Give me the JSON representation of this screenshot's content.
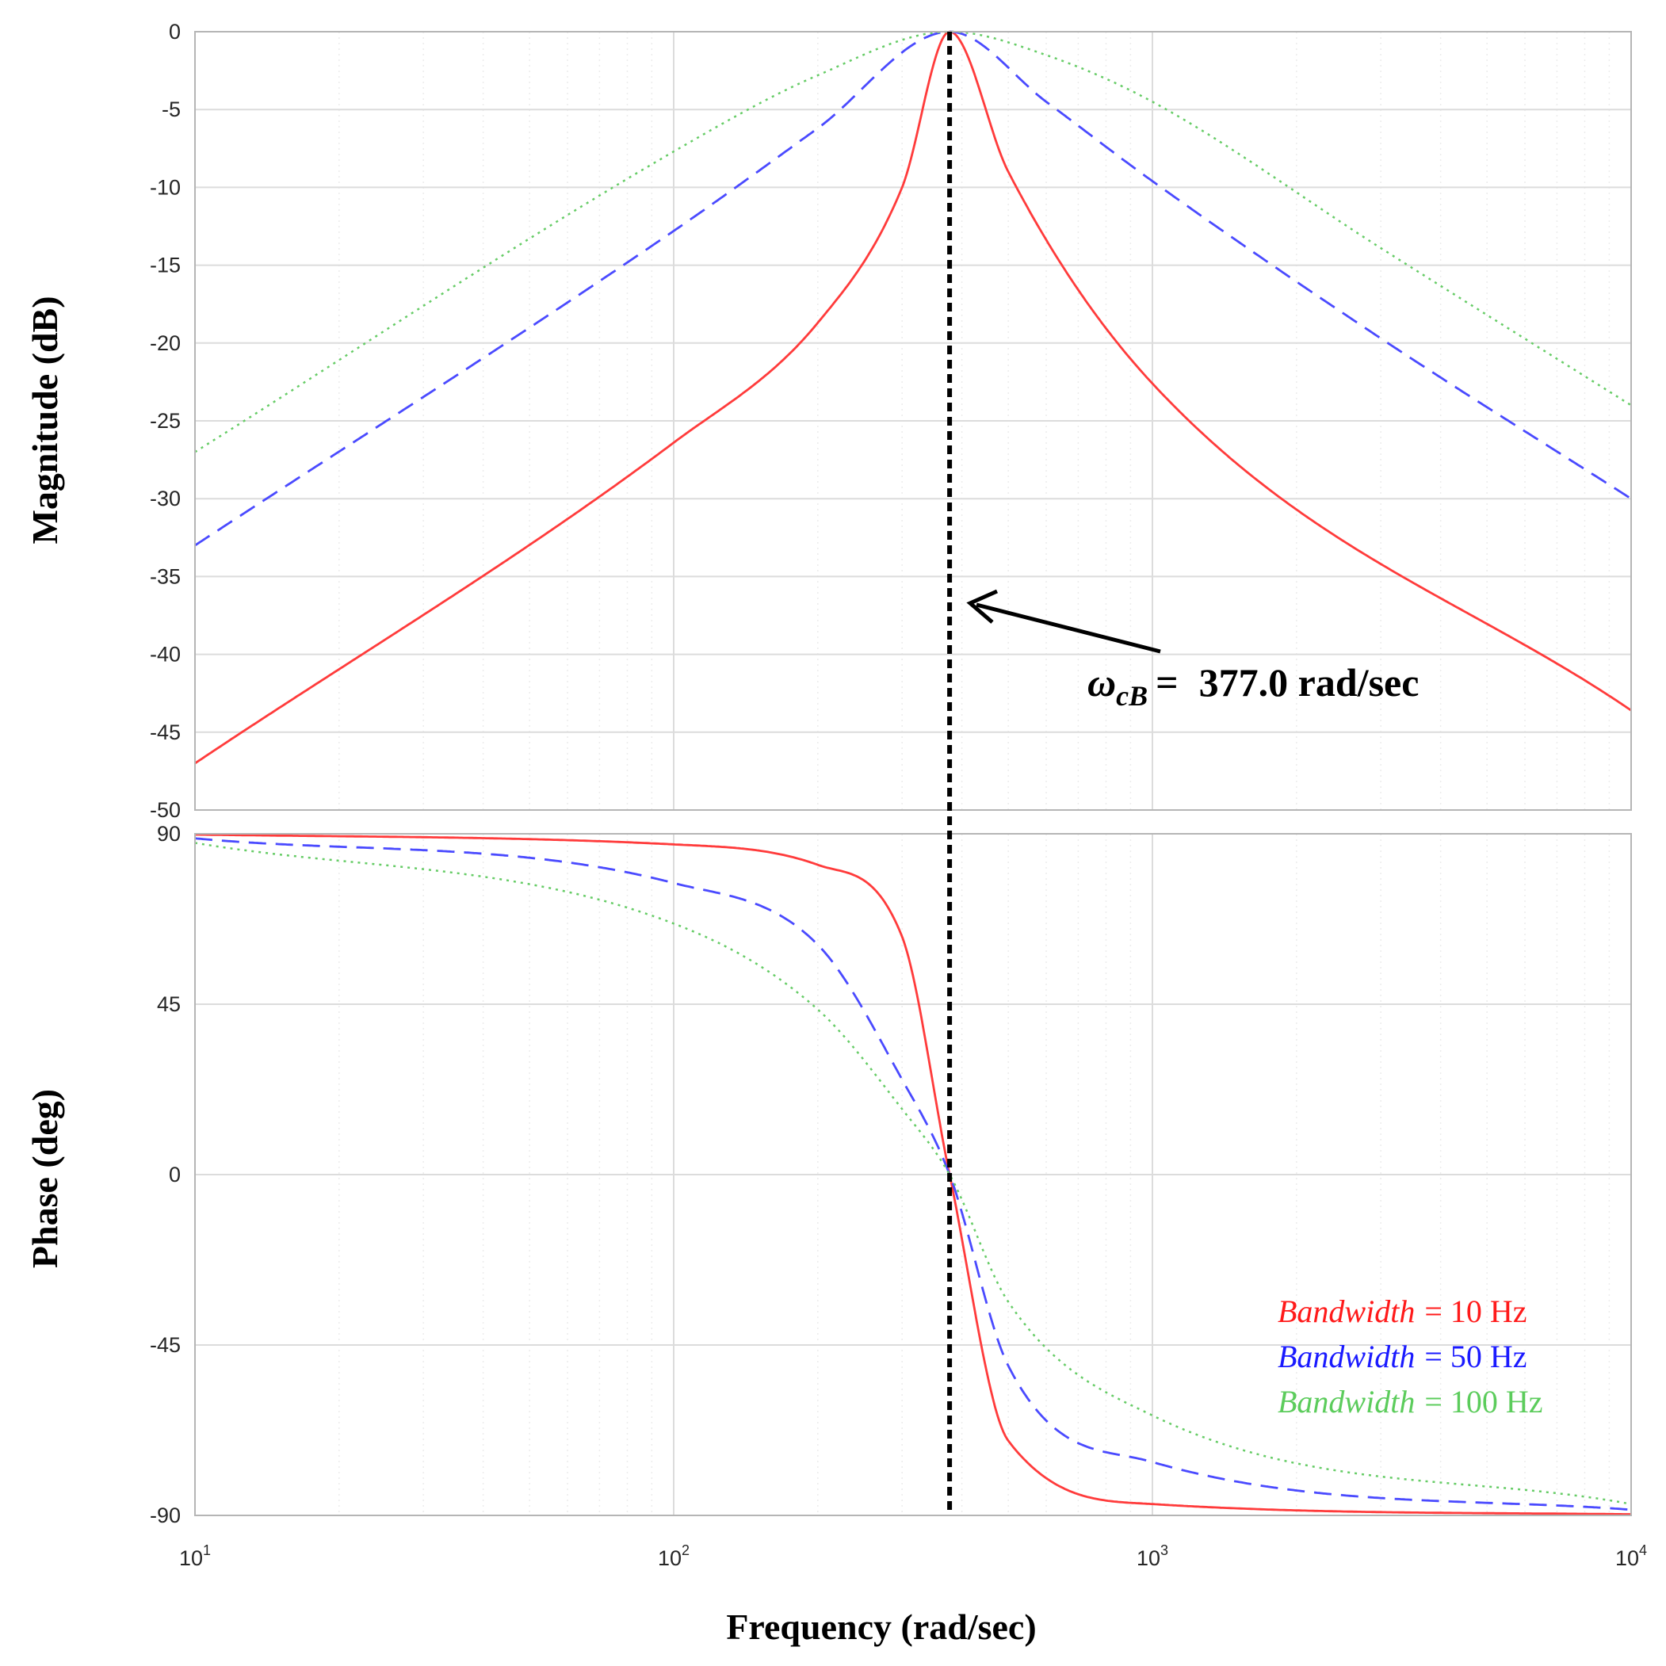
{
  "chart_data": {
    "type": "line",
    "title": "",
    "subtitle": "",
    "xlabel": "Frequency (rad/sec)",
    "xscale": "log",
    "xlim": [
      10,
      10000
    ],
    "x_ticks": [
      {
        "base": "10",
        "exp": "1"
      },
      {
        "base": "10",
        "exp": "2"
      },
      {
        "base": "10",
        "exp": "3"
      },
      {
        "base": "10",
        "exp": "4"
      }
    ],
    "grid": true,
    "center_frequency_rad_s": 377.0,
    "panels": [
      {
        "name": "magnitude",
        "ylabel": "Magnitude (dB)",
        "ylim": [
          -50,
          0
        ],
        "yticks": [
          0,
          -5,
          -10,
          -15,
          -20,
          -25,
          -30,
          -35,
          -40,
          -45,
          -50
        ],
        "series": [
          {
            "name": "Bandwidth = 10 Hz",
            "color": "#ff3b3b",
            "style": "solid",
            "x": [
              10,
              100,
              200,
              300,
              377,
              500,
              1000,
              10000
            ],
            "y": [
              -47.0,
              -26.4,
              -18.7,
              -10.0,
              0,
              -9.0,
              -22.6,
              -43.6
            ]
          },
          {
            "name": "Bandwidth = 50 Hz",
            "color": "#4a4aff",
            "style": "dashed",
            "x": [
              10,
              100,
              200,
              377,
              600,
              1000,
              3000,
              10000
            ],
            "y": [
              -33.0,
              -12.8,
              -6.2,
              0,
              -4.5,
              -9.6,
              -19.7,
              -30.0
            ]
          },
          {
            "name": "Bandwidth = 100 Hz",
            "color": "#66cc66",
            "style": "dotted",
            "x": [
              10,
              100,
              200,
              377,
              600,
              1000,
              3000,
              10000
            ],
            "y": [
              -27.0,
              -7.7,
              -2.8,
              0,
              -1.5,
              -4.5,
              -13.9,
              -24.0
            ]
          }
        ]
      },
      {
        "name": "phase",
        "ylabel": "Phase (deg)",
        "ylim": [
          -90,
          90
        ],
        "yticks": [
          90,
          45,
          0,
          -45,
          -90
        ],
        "series": [
          {
            "name": "Bandwidth = 10 Hz",
            "color": "#ff3b3b",
            "style": "solid",
            "x": [
              10,
              100,
              200,
              300,
              377,
              500,
              1000,
              10000
            ],
            "y": [
              89.8,
              87.2,
              81.8,
              62.8,
              0,
              -70.3,
              -87.0,
              -89.7
            ]
          },
          {
            "name": "Bandwidth = 50 Hz",
            "color": "#4a4aff",
            "style": "dashed",
            "x": [
              10,
              100,
              200,
              300,
              377,
              500,
              1000,
              10000
            ],
            "y": [
              88.8,
              77.0,
              60.7,
              25.1,
              0,
              -50.5,
              -75.9,
              -88.5
            ]
          },
          {
            "name": "Bandwidth = 100 Hz",
            "color": "#66cc66",
            "style": "dotted",
            "x": [
              10,
              100,
              200,
              300,
              377,
              500,
              1000,
              10000
            ],
            "y": [
              87.6,
              66.3,
              43.6,
              17.3,
              0,
              -33.6,
              -63.6,
              -87.0
            ]
          }
        ]
      }
    ],
    "annotation": {
      "symbol": "ω",
      "subscript": "cB",
      "equals": "=",
      "value_text": "377.0 rad/sec"
    },
    "legend": {
      "position": "bottom-right of phase panel",
      "entries": [
        {
          "label": "Bandwidth",
          "value_text": "= 10 Hz",
          "color": "#ff1a1a"
        },
        {
          "label": "Bandwidth",
          "value_text": "= 50 Hz",
          "color": "#1a1aff"
        },
        {
          "label": "Bandwidth",
          "value_text": "= 100 Hz",
          "color": "#5ccc5c"
        }
      ]
    }
  }
}
